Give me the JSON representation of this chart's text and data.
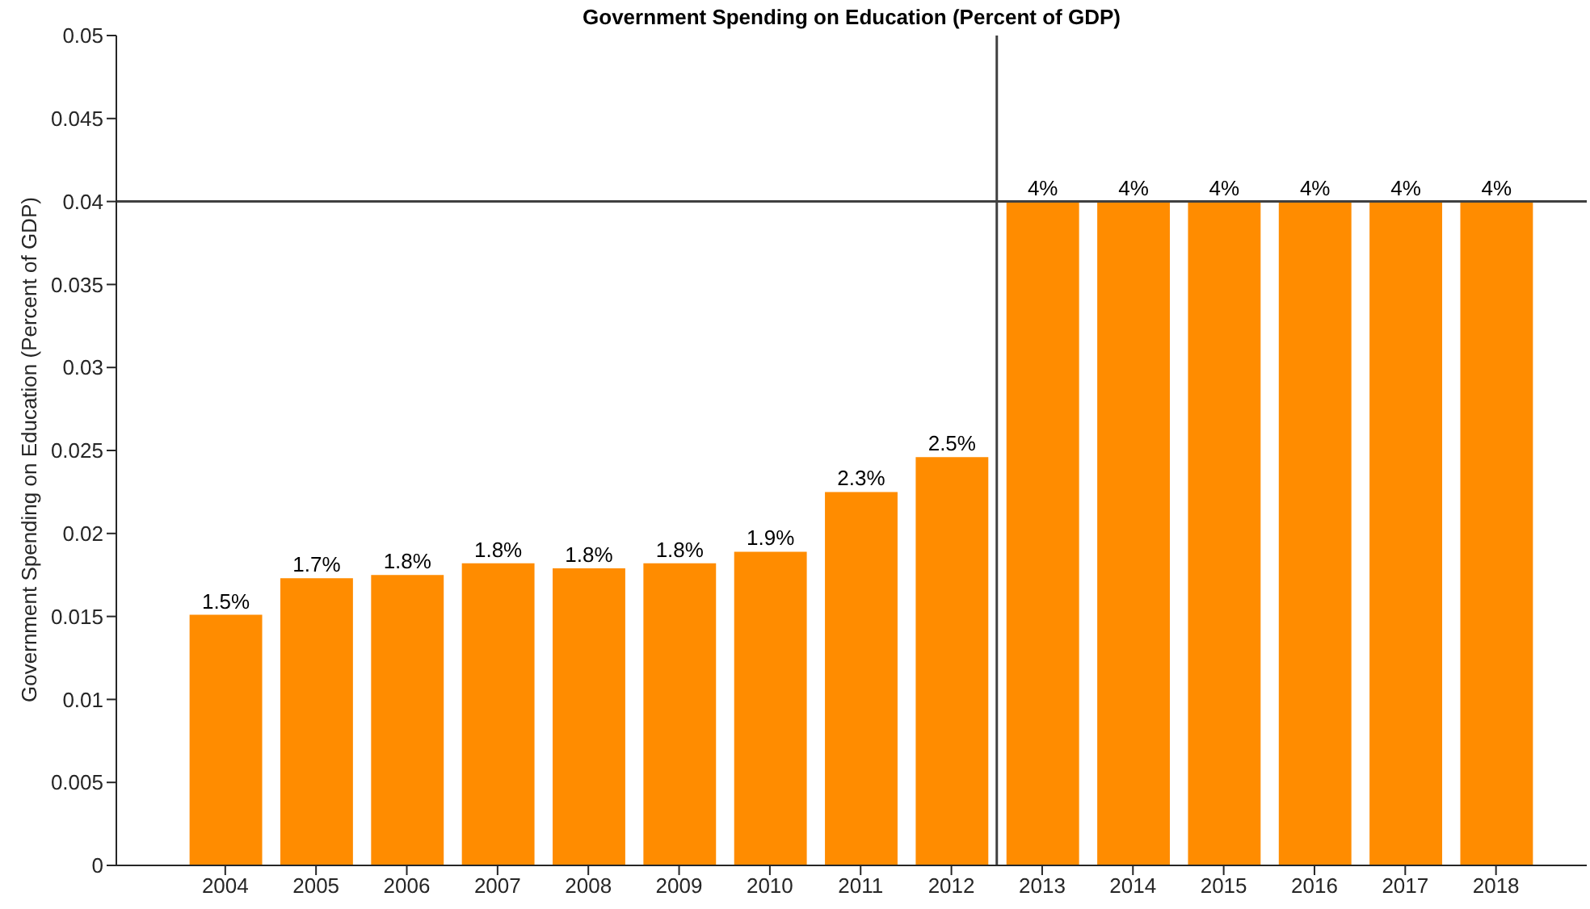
{
  "chart_data": {
    "type": "bar",
    "title": "Government Spending on Education (Percent of GDP)",
    "ylabel": "Government Spending on Education (Percent of GDP)",
    "x": [
      2004,
      2005,
      2006,
      2007,
      2008,
      2009,
      2010,
      2011,
      2012,
      2013,
      2014,
      2015,
      2016,
      2017,
      2018
    ],
    "values": [
      0.0151,
      0.0173,
      0.0175,
      0.0182,
      0.0179,
      0.0182,
      0.0189,
      0.0225,
      0.0246,
      0.04,
      0.04,
      0.04,
      0.04,
      0.04,
      0.04
    ],
    "value_labels": [
      "1.5%",
      "1.7%",
      "1.8%",
      "1.8%",
      "1.8%",
      "1.8%",
      "1.9%",
      "2.3%",
      "2.5%",
      "4%",
      "4%",
      "4%",
      "4%",
      "4%",
      "4%"
    ],
    "color": "#ff8c00",
    "xlim": [
      2002.8,
      2019
    ],
    "xticks": [
      2004,
      2005,
      2006,
      2007,
      2008,
      2009,
      2010,
      2011,
      2012,
      2013,
      2014,
      2015,
      2016,
      2017,
      2018
    ],
    "ylim": [
      0,
      0.05
    ],
    "yticks": [
      0,
      0.005,
      0.01,
      0.015,
      0.02,
      0.025,
      0.03,
      0.035,
      0.04,
      0.045,
      0.05
    ],
    "ref_lines": [
      {
        "axis": "y",
        "value": 0.04,
        "color": "#404040"
      },
      {
        "axis": "x",
        "value": 2012.5,
        "color": "#404040"
      }
    ],
    "grid": false,
    "legend": false
  }
}
